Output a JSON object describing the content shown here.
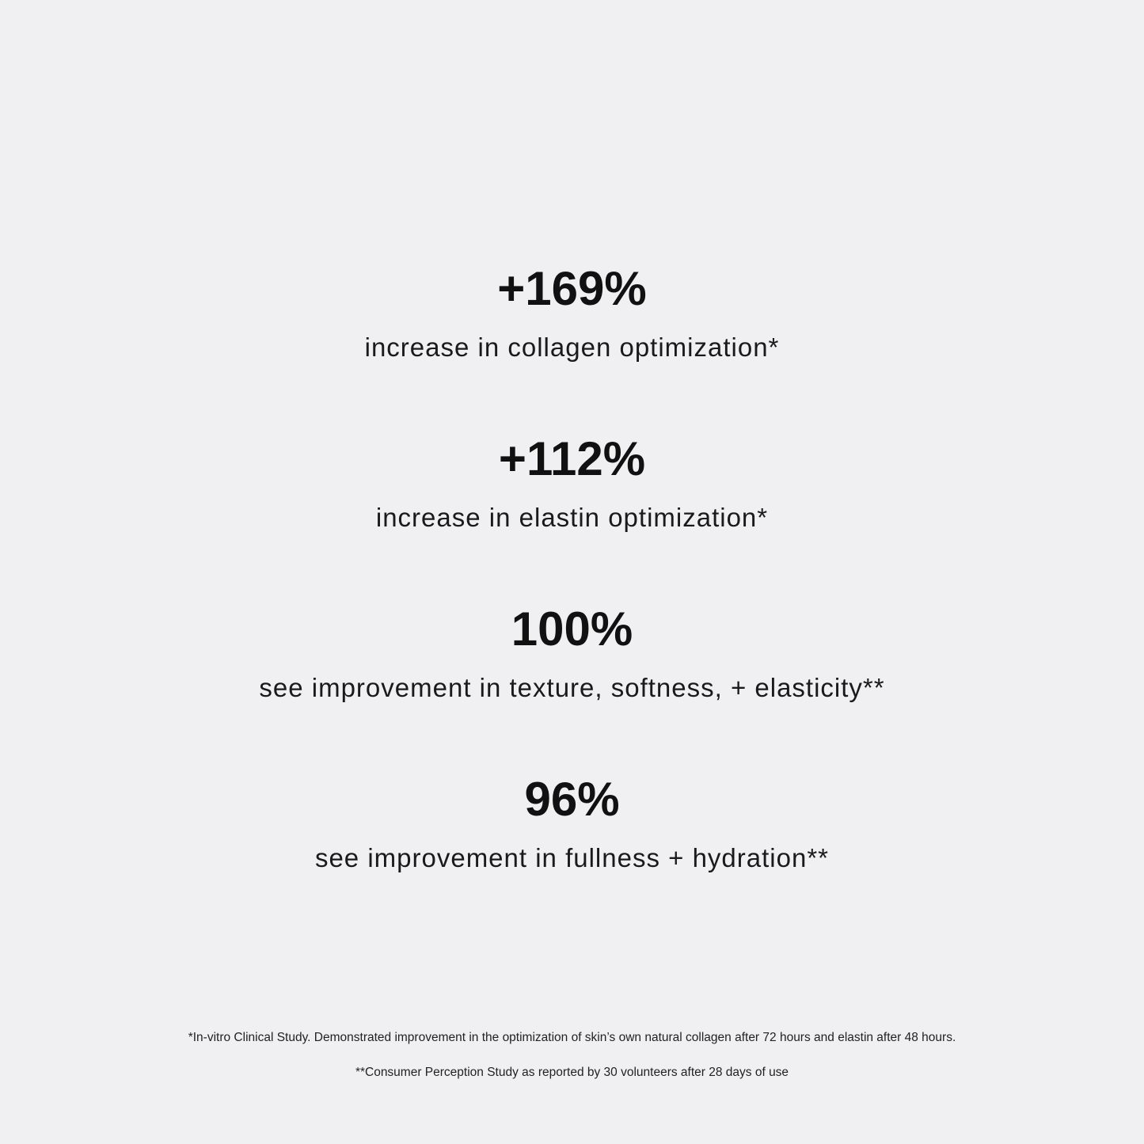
{
  "stats": [
    {
      "value": "+169%",
      "description": "increase in collagen optimization*"
    },
    {
      "value": "+112%",
      "description": "increase in elastin optimization*"
    },
    {
      "value": "100%",
      "description": "see improvement in texture, softness, + elasticity**"
    },
    {
      "value": "96%",
      "description": "see improvement in fullness + hydration**"
    }
  ],
  "footnotes": [
    "*In-vitro Clinical Study. Demonstrated improvement in the optimization of skin’s own natural collagen after 72 hours and elastin after 48 hours.",
    "**Consumer Perception Study as reported by 30 volunteers after 28 days of use"
  ]
}
